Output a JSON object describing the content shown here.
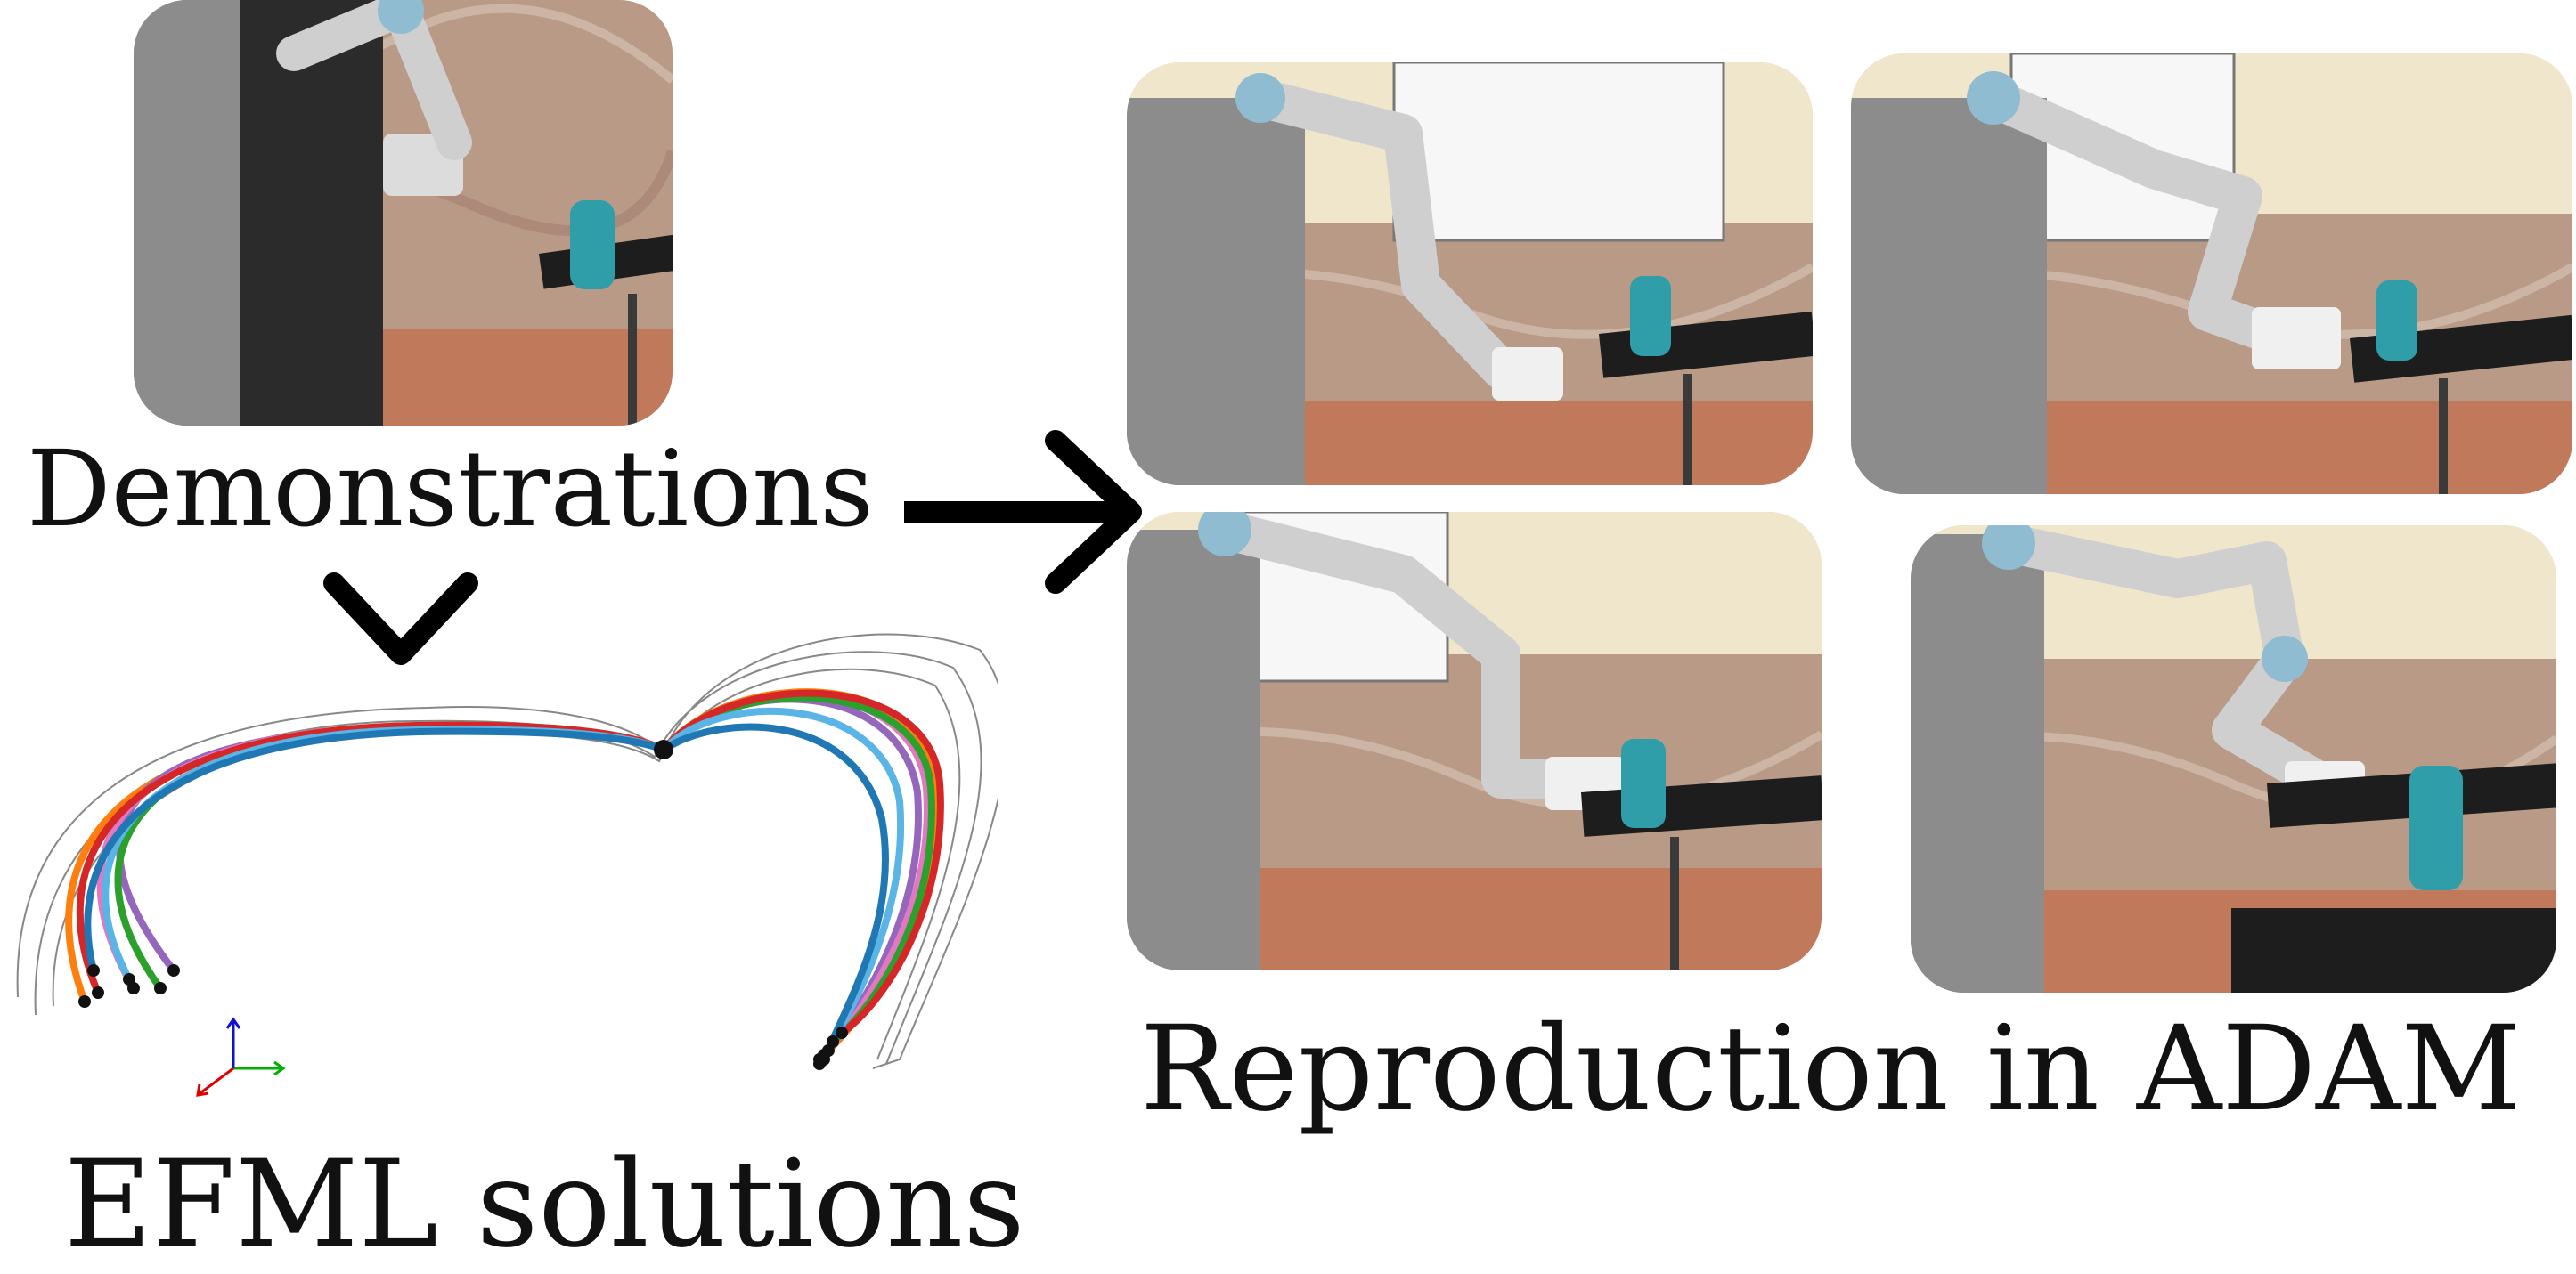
{
  "labels": {
    "demonstrations": "Demonstrations",
    "efml": "EFML solutions",
    "reproduction": "Reproduction in ADAM"
  },
  "colors": {
    "background": "#ffffff",
    "text": "#111111",
    "wall": "#b89a86",
    "floor": "#c0795b",
    "robot_silver": "#c9c9c9",
    "robot_joint_blue": "#8fbcd0",
    "bottle_teal": "#2f9ea8",
    "table_black": "#1d1d1d",
    "wall_upper": "#efe6cc"
  },
  "photos": [
    {
      "id": "demonstration-photo",
      "description_icon": "robot-arm-photo"
    },
    {
      "id": "reproduction-photo-1",
      "description_icon": "robot-arm-photo"
    },
    {
      "id": "reproduction-photo-2",
      "description_icon": "robot-arm-photo"
    },
    {
      "id": "reproduction-photo-3",
      "description_icon": "robot-arm-photo"
    },
    {
      "id": "reproduction-photo-4",
      "description_icon": "robot-arm-photo"
    }
  ],
  "trajectory_colors": [
    "#1f77b4",
    "#5ab4e5",
    "#e377c2",
    "#d62728",
    "#2ca02c",
    "#ff7f0e",
    "#9467bd",
    "#7f7f7f"
  ],
  "axis_colors": {
    "x": "#00b000",
    "y": "#1010d0",
    "z": "#e00000"
  }
}
